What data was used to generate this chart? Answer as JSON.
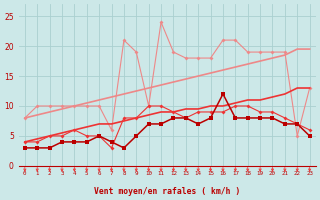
{
  "x": [
    0,
    1,
    2,
    3,
    4,
    5,
    6,
    7,
    8,
    9,
    10,
    11,
    12,
    13,
    14,
    15,
    16,
    17,
    18,
    19,
    20,
    21,
    22,
    23
  ],
  "line_light_jagged": [
    8,
    10,
    10,
    10,
    10,
    10,
    10,
    6,
    21,
    19,
    10,
    24,
    19,
    18,
    18,
    18,
    21,
    21,
    19,
    19,
    19,
    19,
    5,
    13
  ],
  "line_light_trend": [
    8,
    8.5,
    9,
    9.5,
    10,
    10.5,
    11,
    11.5,
    12,
    12.5,
    13,
    13.5,
    14,
    14.5,
    15,
    15.5,
    16,
    16.5,
    17,
    17.5,
    18,
    18.5,
    19.5,
    19.5
  ],
  "line_med_jagged": [
    4,
    4,
    5,
    5,
    6,
    5,
    5,
    3,
    8,
    8,
    10,
    10,
    9,
    8,
    9,
    9,
    9,
    10,
    10,
    9,
    9,
    8,
    7,
    6
  ],
  "line_med_trend": [
    4,
    4.5,
    5,
    5.5,
    6,
    6.5,
    7,
    7,
    7.5,
    8,
    8.5,
    9,
    9,
    9.5,
    9.5,
    10,
    10,
    10.5,
    11,
    11,
    11.5,
    12,
    13,
    13
  ],
  "line_dark_jagged": [
    3,
    3,
    3,
    4,
    4,
    4,
    5,
    4,
    3,
    5,
    7,
    7,
    8,
    8,
    7,
    8,
    12,
    8,
    8,
    8,
    8,
    7,
    7,
    5
  ],
  "bg_color": "#cce8e8",
  "grid_color": "#aad0d0",
  "dark_red": "#bb0000",
  "medium_red": "#ee3333",
  "light_red": "#ee8888",
  "xlabel": "Vent moyen/en rafales ( km/h )",
  "xlim": [
    -0.5,
    23.5
  ],
  "ylim": [
    0,
    27
  ],
  "yticks": [
    0,
    5,
    10,
    15,
    20,
    25
  ],
  "xticks": [
    0,
    1,
    2,
    3,
    4,
    5,
    6,
    7,
    8,
    9,
    10,
    11,
    12,
    13,
    14,
    15,
    16,
    17,
    18,
    19,
    20,
    21,
    22,
    23
  ]
}
